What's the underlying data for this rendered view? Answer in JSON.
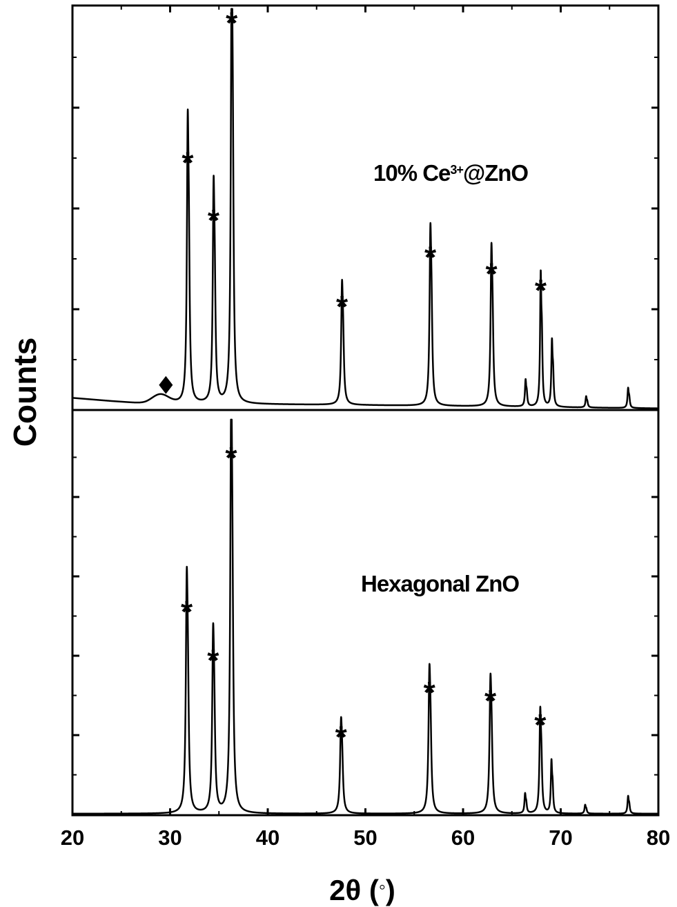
{
  "chart_data": {
    "type": "line",
    "xlabel": "2θ (°)",
    "xlabel_parts": {
      "main": "2θ (",
      "unit": "◦",
      "close": ")"
    },
    "ylabel": "Counts",
    "xlim": [
      20,
      80
    ],
    "x_ticks": [
      20,
      30,
      40,
      50,
      60,
      70,
      80
    ],
    "x_tick_labels": [
      "20",
      "30",
      "40",
      "50",
      "60",
      "70",
      "80"
    ],
    "y_ticks_shown_without_labels": true,
    "grid": false,
    "panels": [
      {
        "name": "10% Ce3+@ZnO",
        "label_parts": {
          "a": "10% Ce",
          "sup": "3+",
          "b": "@ZnO"
        },
        "ylim": [
          0,
          100
        ],
        "baseline": [
          [
            20,
            3
          ],
          [
            24,
            2.2
          ],
          [
            27.5,
            1.6
          ],
          [
            31,
            1.6
          ],
          [
            50,
            1.2
          ],
          [
            80,
            0.4
          ]
        ],
        "bumps": [
          {
            "x": 29.0,
            "height": 2.2,
            "width": 1.2
          }
        ],
        "peaks": [
          {
            "x": 31.8,
            "height": 61,
            "width": 0.2
          },
          {
            "x": 34.45,
            "height": 47,
            "width": 0.2
          },
          {
            "x": 36.3,
            "height": 95,
            "width": 0.2
          },
          {
            "x": 47.6,
            "height": 26,
            "width": 0.2
          },
          {
            "x": 56.65,
            "height": 38,
            "width": 0.2
          },
          {
            "x": 62.9,
            "height": 34,
            "width": 0.2
          },
          {
            "x": 66.4,
            "height": 6,
            "width": 0.15
          },
          {
            "x": 67.95,
            "height": 30,
            "width": 0.15
          },
          {
            "x": 69.1,
            "height": 15,
            "width": 0.15
          },
          {
            "x": 72.6,
            "height": 2.5,
            "width": 0.15
          },
          {
            "x": 76.9,
            "height": 4.5,
            "width": 0.15
          }
        ],
        "star_peaks": [
          31.8,
          34.45,
          36.3,
          47.6,
          56.65,
          62.9,
          67.95
        ],
        "diamond_peaks": [
          29.0
        ]
      },
      {
        "name": "Hexagonal ZnO",
        "label_parts": {
          "a": "Hexagonal ZnO",
          "sup": "",
          "b": ""
        },
        "ylim": [
          0,
          100
        ],
        "baseline": [
          [
            20,
            0.2
          ],
          [
            80,
            0.2
          ]
        ],
        "bumps": [],
        "peaks": [
          {
            "x": 31.7,
            "height": 51,
            "width": 0.22
          },
          {
            "x": 34.4,
            "height": 39,
            "width": 0.22
          },
          {
            "x": 36.25,
            "height": 89,
            "width": 0.22
          },
          {
            "x": 47.5,
            "height": 20,
            "width": 0.22
          },
          {
            "x": 56.55,
            "height": 31,
            "width": 0.22
          },
          {
            "x": 62.8,
            "height": 29,
            "width": 0.22
          },
          {
            "x": 66.35,
            "height": 4.5,
            "width": 0.15
          },
          {
            "x": 67.9,
            "height": 23,
            "width": 0.18
          },
          {
            "x": 69.05,
            "height": 12,
            "width": 0.15
          },
          {
            "x": 72.5,
            "height": 2,
            "width": 0.15
          },
          {
            "x": 76.9,
            "height": 4,
            "width": 0.15
          }
        ],
        "star_peaks": [
          31.7,
          34.4,
          36.25,
          47.5,
          56.55,
          62.8,
          67.9
        ],
        "diamond_peaks": []
      }
    ],
    "markers": {
      "peak_symbol": "*",
      "impurity_symbol": "♦"
    }
  }
}
